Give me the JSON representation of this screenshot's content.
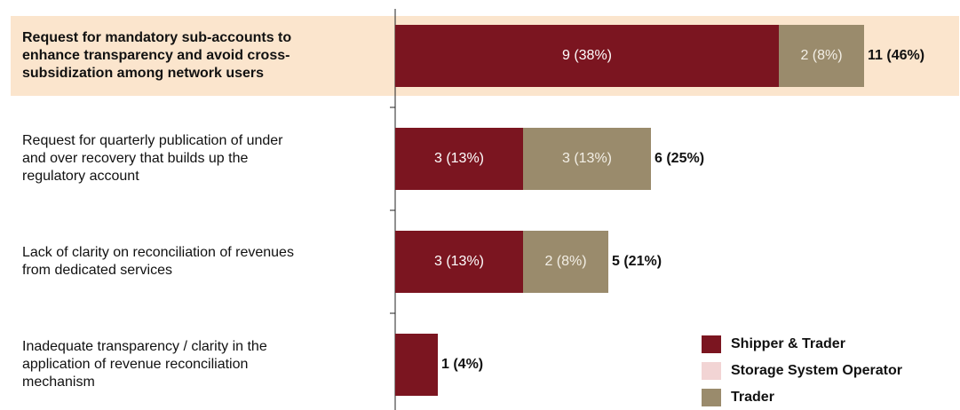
{
  "chart_data": {
    "type": "stacked-bar-horizontal",
    "categories": [
      "Request for mandatory sub-accounts to\nenhance transparency and avoid cross-\nsubsidization among network users",
      "Request for quarterly publication of under\nand over recovery that builds up the\nregulatory account",
      "Lack of clarity on reconciliation of revenues\nfrom dedicated services",
      "Inadequate transparency / clarity in the\napplication of revenue reconciliation\nmechanism"
    ],
    "highlight_index": 0,
    "highlight_color": "#fbe5cd",
    "series": [
      {
        "name": "Shipper & Trader",
        "color": "#7b1520",
        "values": [
          9,
          3,
          3,
          1
        ],
        "value_labels": [
          "9 (38%)",
          "3 (13%)",
          "3 (13%)",
          null
        ]
      },
      {
        "name": "Storage System Operator",
        "color": "#f2d4d4",
        "values": [
          0,
          0,
          0,
          0
        ],
        "value_labels": [
          null,
          null,
          null,
          null
        ]
      },
      {
        "name": "Trader",
        "color": "#9a8b6c",
        "values": [
          2,
          3,
          2,
          0
        ],
        "value_labels": [
          "2 (8%)",
          "3 (13%)",
          "2 (8%)",
          null
        ]
      }
    ],
    "totals": [
      11,
      6,
      5,
      1
    ],
    "total_labels": [
      "11 (46%)",
      "6 (25%)",
      "5 (21%)",
      "1 (4%)"
    ]
  }
}
